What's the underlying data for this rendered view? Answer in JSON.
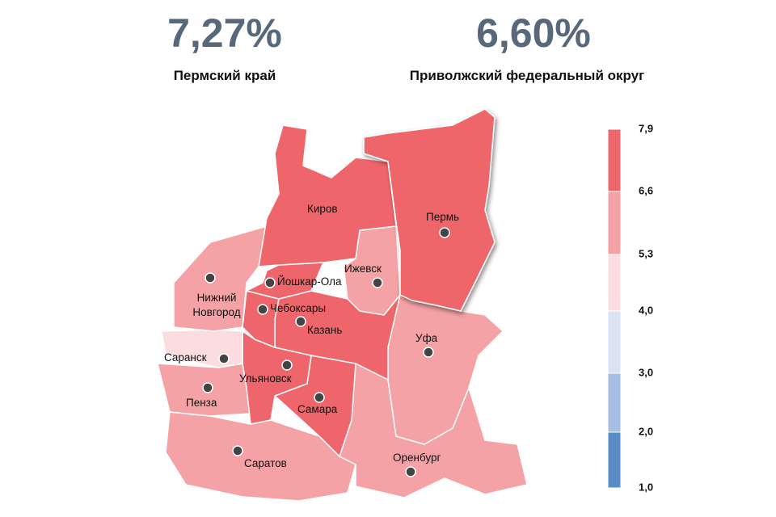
{
  "stats": [
    {
      "value": "7,27%",
      "label": "Пермский край"
    },
    {
      "value": "6,60%",
      "label": "Приволжский федеральный округ"
    }
  ],
  "cities": [
    "Киров",
    "Пермь",
    "Ижевск",
    "Йошкар-Ола",
    "Нижний Новгород",
    "Чебоксары",
    "Казань",
    "Уфа",
    "Саранск",
    "Ульяновск",
    "Пенза",
    "Самара",
    "Саратов",
    "Оренбург"
  ],
  "legend": {
    "ticks": [
      "7,9",
      "6,6",
      "5,3",
      "4,0",
      "3,0",
      "2,0",
      "1,0"
    ],
    "colors": [
      "#ee666b",
      "#f4a2a5",
      "#fbdde0",
      "#dbe3f3",
      "#a6bfe2",
      "#5a8dc8"
    ]
  }
}
